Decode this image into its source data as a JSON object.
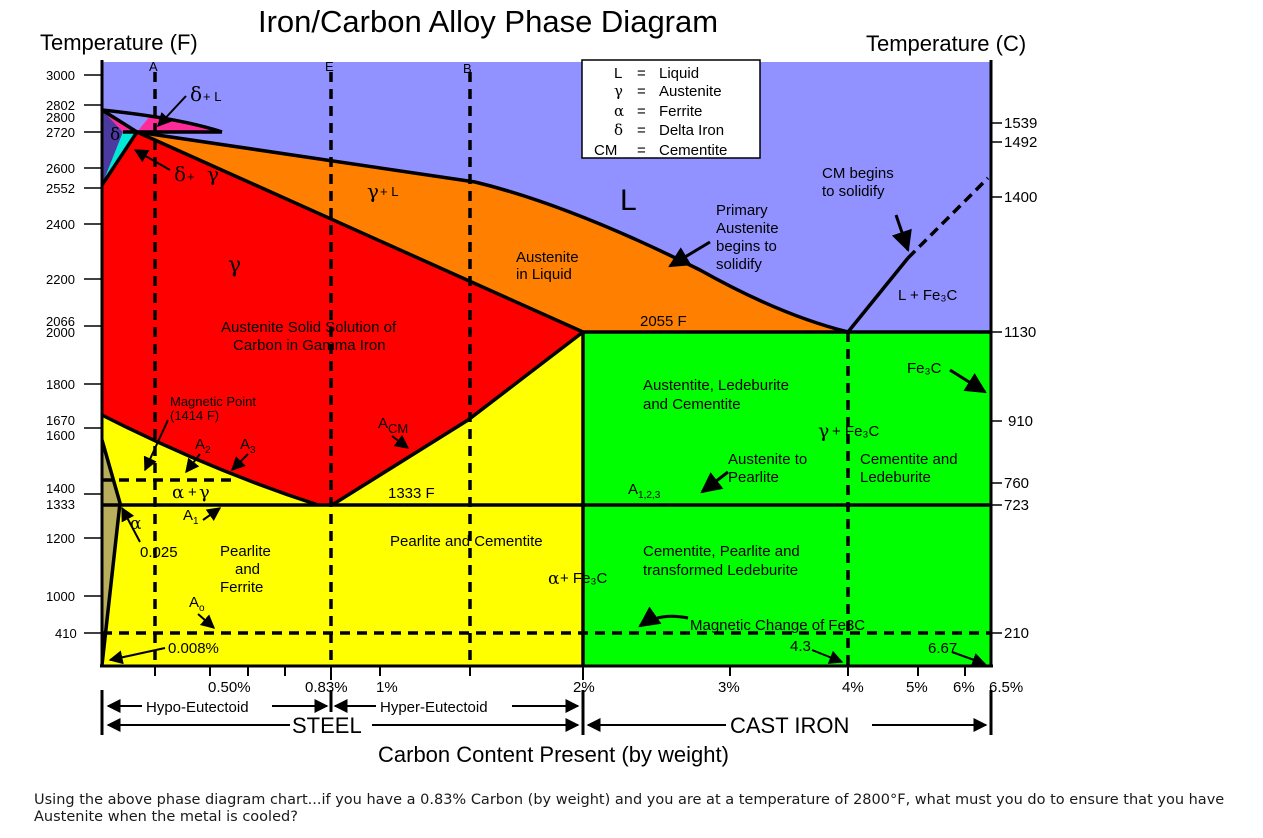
{
  "title": "Iron/Carbon Alloy Phase Diagram",
  "left_axis_title": "Temperature (F)",
  "right_axis_title": "Temperature (C)",
  "x_axis_title": "Carbon Content Present (by weight)",
  "fahrenheit_ticks": [
    "3000",
    "2802",
    "2800",
    "2720",
    "2600",
    "2552",
    "2400",
    "2200",
    "2066",
    "2000",
    "1800",
    "1670",
    "1600",
    "1400",
    "1333",
    "1200",
    "1000",
    "410"
  ],
  "celsius_ticks": [
    "1539",
    "1492",
    "1400",
    "1130",
    "910",
    "760",
    "723",
    "210"
  ],
  "carbon_ticks": [
    "0.50%",
    "0.83%",
    "1%",
    "2%",
    "3%",
    "4%",
    "5%",
    "6%",
    "6.5%"
  ],
  "line_labels": {
    "a": "A",
    "e": "E",
    "b": "B"
  },
  "legend": [
    {
      "symbol": "L",
      "text": "Liquid"
    },
    {
      "symbol": "γ",
      "text": "Austenite"
    },
    {
      "symbol": "α",
      "text": "Ferrite"
    },
    {
      "symbol": "δ",
      "text": "Delta Iron"
    },
    {
      "symbol": "CM",
      "text": "Cementite"
    }
  ],
  "legend_eq": "=",
  "regions": {
    "liquid": "L",
    "delta": "δ",
    "delta_l_sym": "δ",
    "delta_l_rest": " + L",
    "delta_gamma_sym1": "δ",
    "delta_gamma_plus": " + ",
    "delta_gamma_sym2": "γ",
    "gamma_l_sym": "γ",
    "gamma_l_rest": " + L",
    "gamma": "γ",
    "austenite_solid_1": "Austenite Solid Solution of",
    "austenite_solid_2": "Carbon in Gamma Iron",
    "austenite_liquid_1": "Austenite",
    "austenite_liquid_2": "in Liquid",
    "primary_1": "Primary",
    "primary_2": "Austenite",
    "primary_3": "begins to",
    "primary_4": "solidify",
    "cm_begins_1": "CM begins",
    "cm_begins_2": "to solidify",
    "l_fe3c": "L + Fe₃C",
    "temp_2055": "2055 F",
    "aust_ledeb_1": "Austentite, Ledeburite",
    "aust_ledeb_2": "and Cementite",
    "fe3c": "Fe₃C",
    "gamma_fe3c_sym": "γ",
    "gamma_fe3c_rest": "+ Fe₃C",
    "magnetic_point_1": "Magnetic Point",
    "magnetic_point_2": "(1414 F)",
    "acm_a": "A",
    "acm_sub": "CM",
    "a2": "A",
    "a2_sub": "2",
    "a3": "A",
    "a3_sub": "3",
    "alpha_gamma_sym1": "α",
    "alpha_gamma_plus": "+",
    "alpha_gamma_sym2": "γ",
    "temp_1333": "1333 F",
    "a123": "A",
    "a123_sub": "1,2,3",
    "aust_pearlite_1": "Austenite to",
    "aust_pearlite_2": "Pearlite",
    "cem_ledeb_1": "Cementite and",
    "cem_ledeb_2": "Ledeburite",
    "alpha": "α",
    "a1": "A",
    "a1_sub": "1",
    "c_0025": "0.025",
    "pearlite_ferrite_1": "Pearlite",
    "pearlite_ferrite_2": "and",
    "pearlite_ferrite_3": "Ferrite",
    "pearlite_cementite": "Pearlite and Cementite",
    "alpha_fe3c_sym": "α",
    "alpha_fe3c_rest": " + Fe₃C",
    "cem_pearlite_1": "Cementite, Pearlite and",
    "cem_pearlite_2": "transformed Ledeburite",
    "a0": "A",
    "a0_sub": "o",
    "c_0008": "0.008%",
    "magnetic_change": "Magnetic Change of Fe3C",
    "c_43": "4.3",
    "c_667": "6.67"
  },
  "range_labels": {
    "hypo": "Hypo-Eutectoid",
    "hyper": "Hyper-Eutectoid",
    "steel": "STEEL",
    "cast_iron": "CAST IRON"
  },
  "colors": {
    "liquid": "#9191FF",
    "austenite": "#FF0000",
    "austenite_liquid": "#FF8000",
    "ferrite_pearlite": "#FFFF00",
    "cast_iron": "#00FF00",
    "delta": "#4B3AA0",
    "delta_liquid": "#FF2A9A",
    "delta_austenite": "#00E8D8",
    "alpha_ferrite": "#B8AE5C"
  },
  "question": "Using the above phase diagram chart...if you have a 0.83% Carbon (by weight) and you are at a temperature of 2800°F, what must you do to ensure that you have Austenite when the metal is cooled?"
}
